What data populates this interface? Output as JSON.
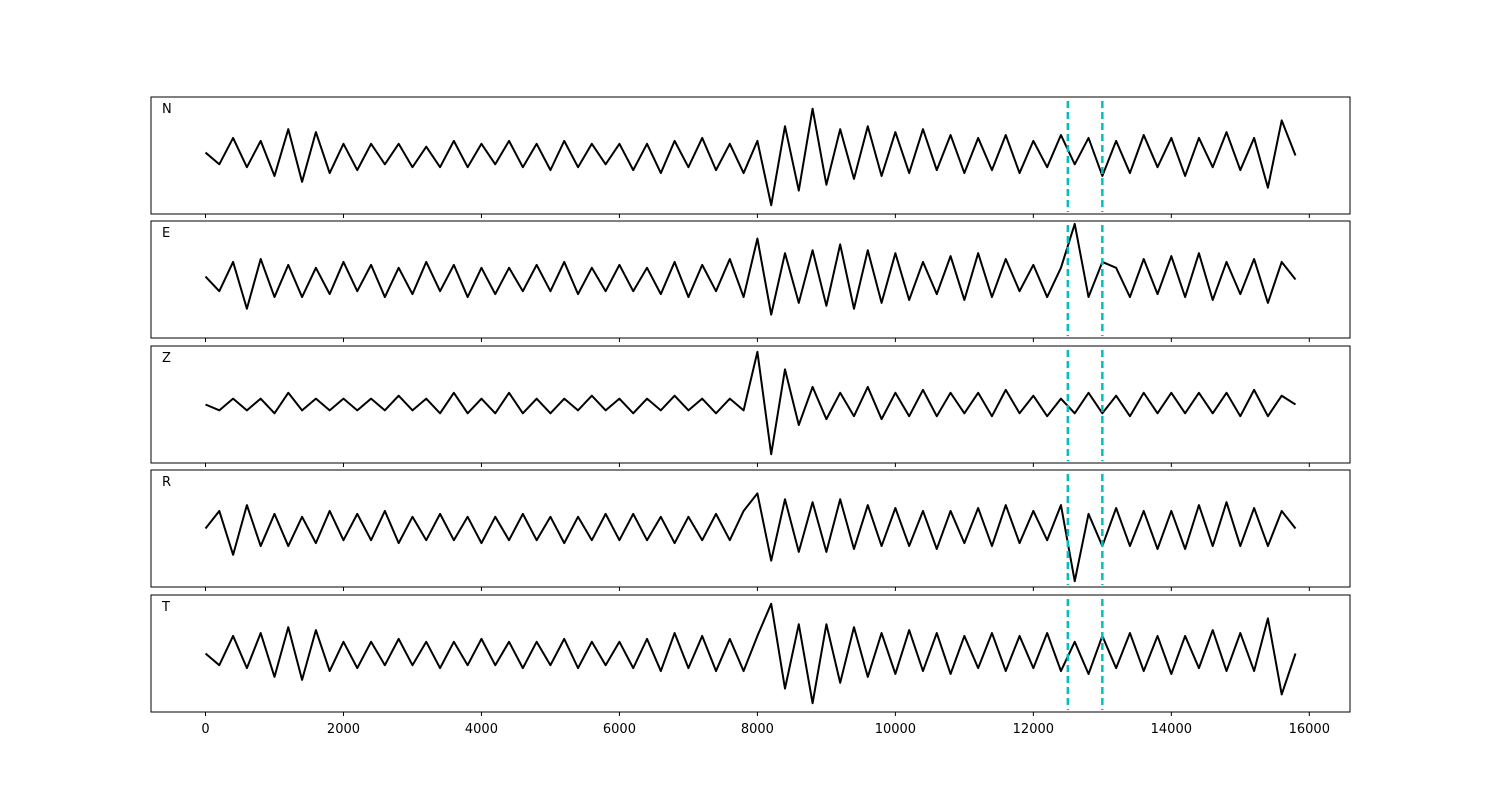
{
  "chart_data": {
    "type": "line",
    "x": [
      0,
      200,
      400,
      600,
      800,
      1000,
      1200,
      1400,
      1600,
      1800,
      2000,
      2200,
      2400,
      2600,
      2800,
      3000,
      3200,
      3400,
      3600,
      3800,
      4000,
      4200,
      4400,
      4600,
      4800,
      5000,
      5200,
      5400,
      5600,
      5800,
      6000,
      6200,
      6400,
      6600,
      6800,
      7000,
      7200,
      7400,
      7600,
      7800,
      8000,
      8200,
      8400,
      8600,
      8800,
      9000,
      9200,
      9400,
      9600,
      9800,
      10000,
      10200,
      10400,
      10600,
      10800,
      11000,
      11200,
      11400,
      11600,
      11800,
      12000,
      12200,
      12400,
      12600,
      12800,
      13000,
      13200,
      13400,
      13600,
      13800,
      14000,
      14200,
      14400,
      14600,
      14800,
      15000,
      15200,
      15400,
      15600,
      15800
    ],
    "series": [
      {
        "name": "N",
        "color": "#000000",
        "values": [
          0.05,
          -0.15,
          0.3,
          -0.2,
          0.25,
          -0.35,
          0.45,
          -0.45,
          0.4,
          -0.3,
          0.2,
          -0.25,
          0.2,
          -0.15,
          0.2,
          -0.2,
          0.15,
          -0.2,
          0.25,
          -0.2,
          0.2,
          -0.15,
          0.25,
          -0.2,
          0.2,
          -0.25,
          0.25,
          -0.2,
          0.2,
          -0.15,
          0.2,
          -0.25,
          0.2,
          -0.3,
          0.25,
          -0.2,
          0.3,
          -0.25,
          0.2,
          -0.3,
          0.25,
          -0.85,
          0.5,
          -0.6,
          0.8,
          -0.5,
          0.45,
          -0.4,
          0.5,
          -0.35,
          0.4,
          -0.3,
          0.45,
          -0.25,
          0.35,
          -0.3,
          0.3,
          -0.25,
          0.35,
          -0.3,
          0.25,
          -0.2,
          0.35,
          -0.15,
          0.3,
          -0.35,
          0.25,
          -0.3,
          0.35,
          -0.2,
          0.3,
          -0.35,
          0.3,
          -0.2,
          0.4,
          -0.25,
          0.3,
          -0.55,
          0.6,
          0.0
        ]
      },
      {
        "name": "E",
        "color": "#000000",
        "values": [
          0.05,
          -0.2,
          0.3,
          -0.5,
          0.35,
          -0.3,
          0.25,
          -0.3,
          0.2,
          -0.25,
          0.3,
          -0.2,
          0.25,
          -0.3,
          0.2,
          -0.25,
          0.3,
          -0.2,
          0.25,
          -0.3,
          0.2,
          -0.25,
          0.2,
          -0.2,
          0.25,
          -0.2,
          0.3,
          -0.25,
          0.2,
          -0.2,
          0.25,
          -0.2,
          0.2,
          -0.25,
          0.3,
          -0.3,
          0.25,
          -0.2,
          0.35,
          -0.3,
          0.7,
          -0.6,
          0.45,
          -0.4,
          0.5,
          -0.45,
          0.6,
          -0.5,
          0.5,
          -0.4,
          0.45,
          -0.35,
          0.3,
          -0.25,
          0.4,
          -0.35,
          0.45,
          -0.3,
          0.35,
          -0.2,
          0.25,
          -0.3,
          0.2,
          0.95,
          -0.3,
          0.3,
          0.2,
          -0.3,
          0.35,
          -0.25,
          0.4,
          -0.3,
          0.45,
          -0.35,
          0.3,
          -0.25,
          0.35,
          -0.4,
          0.3,
          0.0
        ]
      },
      {
        "name": "Z",
        "color": "#000000",
        "values": [
          0.0,
          -0.1,
          0.1,
          -0.1,
          0.1,
          -0.15,
          0.2,
          -0.1,
          0.1,
          -0.1,
          0.1,
          -0.1,
          0.1,
          -0.1,
          0.15,
          -0.1,
          0.1,
          -0.15,
          0.2,
          -0.15,
          0.1,
          -0.15,
          0.2,
          -0.15,
          0.1,
          -0.15,
          0.1,
          -0.1,
          0.15,
          -0.1,
          0.1,
          -0.15,
          0.1,
          -0.1,
          0.15,
          -0.1,
          0.1,
          -0.15,
          0.1,
          -0.1,
          0.9,
          -0.85,
          0.6,
          -0.35,
          0.3,
          -0.25,
          0.2,
          -0.2,
          0.3,
          -0.25,
          0.2,
          -0.2,
          0.25,
          -0.2,
          0.2,
          -0.15,
          0.2,
          -0.2,
          0.25,
          -0.15,
          0.15,
          -0.2,
          0.1,
          -0.15,
          0.2,
          -0.15,
          0.15,
          -0.2,
          0.2,
          -0.15,
          0.2,
          -0.15,
          0.2,
          -0.15,
          0.2,
          -0.2,
          0.25,
          -0.2,
          0.15,
          0.0
        ]
      },
      {
        "name": "R",
        "color": "#000000",
        "values": [
          0.0,
          0.3,
          -0.45,
          0.4,
          -0.3,
          0.25,
          -0.3,
          0.2,
          -0.25,
          0.3,
          -0.2,
          0.25,
          -0.2,
          0.3,
          -0.25,
          0.2,
          -0.2,
          0.25,
          -0.2,
          0.2,
          -0.25,
          0.2,
          -0.2,
          0.25,
          -0.2,
          0.2,
          -0.25,
          0.2,
          -0.2,
          0.25,
          -0.2,
          0.25,
          -0.2,
          0.2,
          -0.25,
          0.2,
          -0.2,
          0.25,
          -0.2,
          0.3,
          0.6,
          -0.55,
          0.5,
          -0.4,
          0.45,
          -0.4,
          0.5,
          -0.35,
          0.4,
          -0.3,
          0.35,
          -0.3,
          0.3,
          -0.35,
          0.3,
          -0.25,
          0.35,
          -0.3,
          0.4,
          -0.25,
          0.3,
          -0.2,
          0.4,
          -0.9,
          0.25,
          -0.3,
          0.35,
          -0.3,
          0.3,
          -0.35,
          0.3,
          -0.35,
          0.4,
          -0.3,
          0.45,
          -0.3,
          0.35,
          -0.3,
          0.3,
          0.0
        ]
      },
      {
        "name": "T",
        "color": "#000000",
        "values": [
          0.0,
          -0.2,
          0.3,
          -0.25,
          0.35,
          -0.4,
          0.45,
          -0.45,
          0.4,
          -0.3,
          0.2,
          -0.25,
          0.2,
          -0.2,
          0.25,
          -0.2,
          0.2,
          -0.25,
          0.2,
          -0.2,
          0.25,
          -0.2,
          0.2,
          -0.25,
          0.2,
          -0.2,
          0.25,
          -0.25,
          0.2,
          -0.2,
          0.2,
          -0.25,
          0.25,
          -0.3,
          0.35,
          -0.25,
          0.3,
          -0.3,
          0.25,
          -0.3,
          0.3,
          0.85,
          -0.6,
          0.5,
          -0.85,
          0.5,
          -0.5,
          0.45,
          -0.4,
          0.35,
          -0.35,
          0.4,
          -0.3,
          0.35,
          -0.35,
          0.3,
          -0.25,
          0.35,
          -0.3,
          0.3,
          -0.25,
          0.35,
          -0.3,
          0.2,
          -0.35,
          0.3,
          -0.25,
          0.35,
          -0.3,
          0.3,
          -0.35,
          0.3,
          -0.25,
          0.4,
          -0.3,
          0.35,
          -0.3,
          0.6,
          -0.7,
          0.0
        ]
      }
    ],
    "xlim": [
      -790,
      16590
    ],
    "xticks": [
      0,
      2000,
      4000,
      6000,
      8000,
      10000,
      12000,
      14000,
      16000
    ],
    "ylim": [
      -1,
      1
    ],
    "vlines": [
      12500,
      13000
    ],
    "vline_color": "#00bfbf"
  }
}
